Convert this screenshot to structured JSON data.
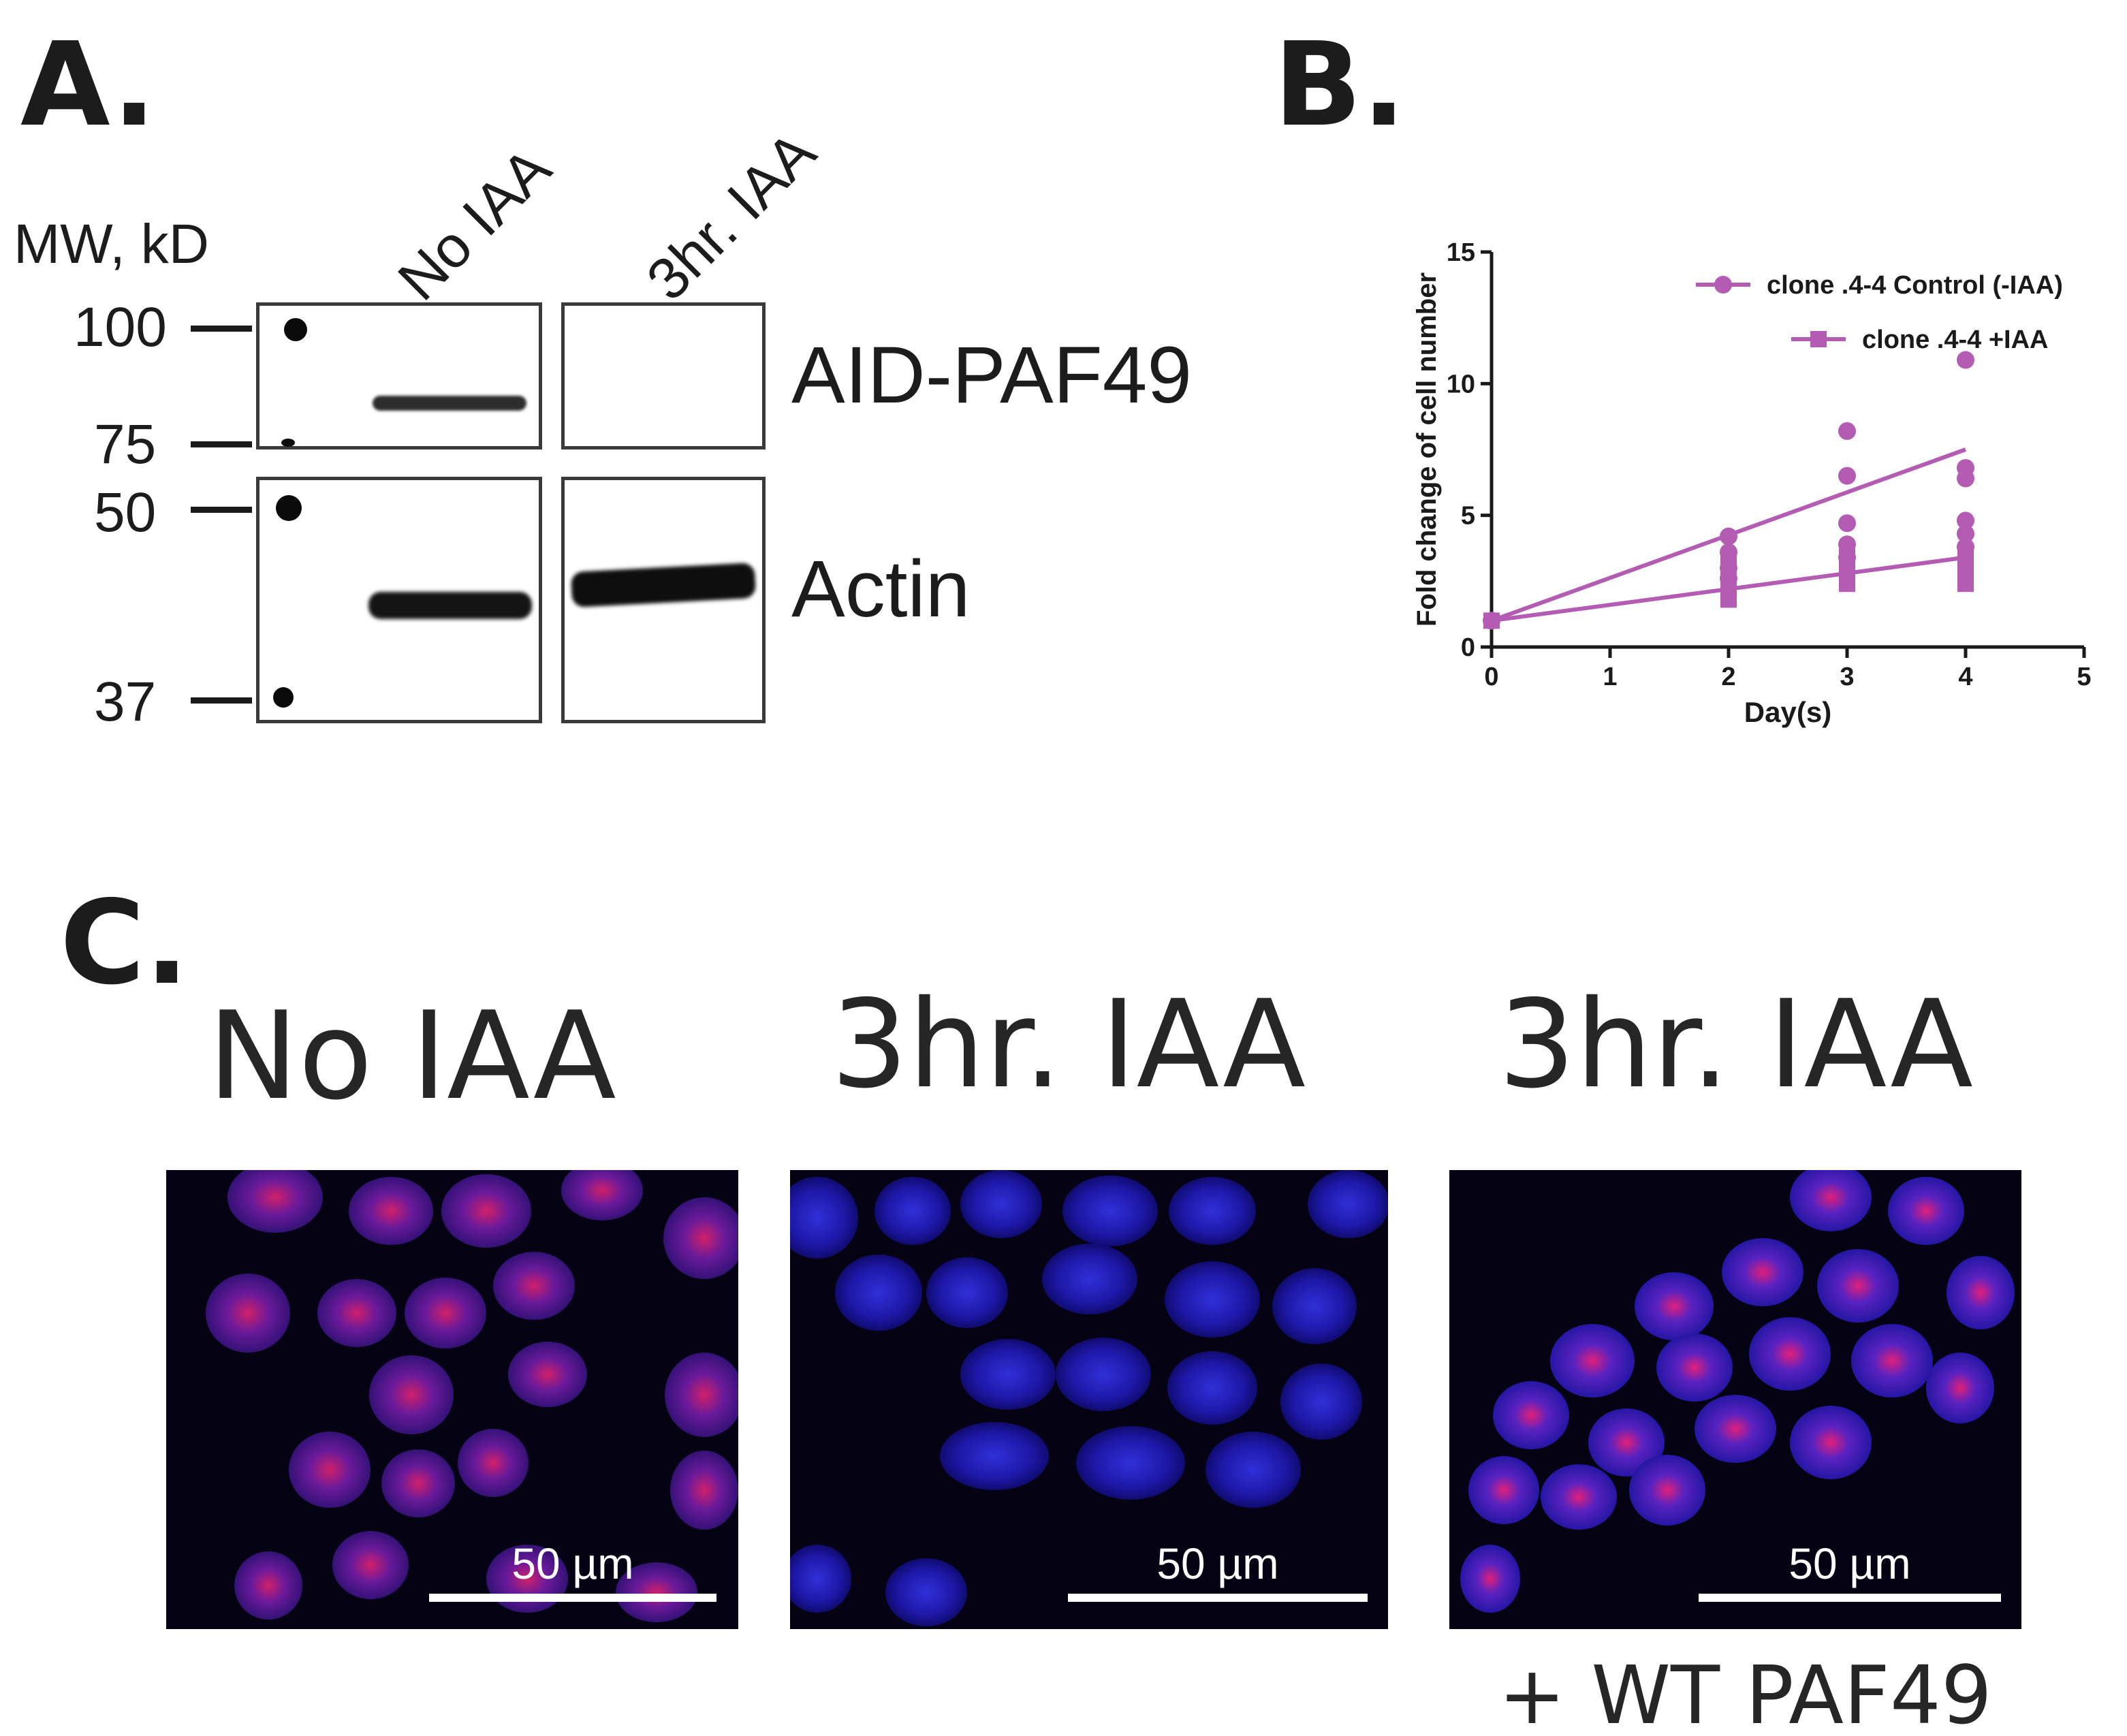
{
  "panel_a": {
    "letter": "A.",
    "mw_label": "MW, kD",
    "lanes": [
      "No IAA",
      "3hr. IAA"
    ],
    "markers": [
      "100",
      "75",
      "50",
      "37"
    ],
    "targets": [
      "AID-PAF49",
      "Actin"
    ]
  },
  "panel_b": {
    "letter": "B."
  },
  "panel_c": {
    "letter": "C.",
    "headers": [
      "No IAA",
      "3hr. IAA",
      "3hr. IAA"
    ],
    "subcaption": "+ WT PAF49",
    "scale_label": "50 µm"
  },
  "chart_data": {
    "type": "scatter",
    "title": "",
    "xlabel": "Day(s)",
    "ylabel": "Fold change of cell number",
    "xlim": [
      0,
      5
    ],
    "ylim": [
      0,
      15
    ],
    "xticks": [
      0,
      1,
      2,
      3,
      4,
      5
    ],
    "yticks": [
      0,
      5,
      10,
      15
    ],
    "grid": false,
    "legend_position": "top-right",
    "color": "#b45cb4",
    "series": [
      {
        "name": "clone .4-4 Control (-IAA)",
        "marker": "circle",
        "points": [
          [
            0,
            1
          ],
          [
            2,
            4.2
          ],
          [
            2,
            3.6
          ],
          [
            2,
            3.0
          ],
          [
            2,
            2.6
          ],
          [
            3,
            8.2
          ],
          [
            3,
            6.5
          ],
          [
            3,
            4.7
          ],
          [
            3,
            3.9
          ],
          [
            3,
            3.4
          ],
          [
            4,
            10.9
          ],
          [
            4,
            6.8
          ],
          [
            4,
            6.4
          ],
          [
            4,
            4.8
          ],
          [
            4,
            4.3
          ],
          [
            4,
            3.8
          ]
        ],
        "fit_line": [
          [
            0,
            1
          ],
          [
            4,
            7.5
          ]
        ]
      },
      {
        "name": "clone .4-4 +IAA",
        "marker": "square",
        "points": [
          [
            0,
            1
          ],
          [
            2,
            3.2
          ],
          [
            2,
            2.8
          ],
          [
            2,
            2.4
          ],
          [
            2,
            2.1
          ],
          [
            2,
            1.8
          ],
          [
            3,
            3.6
          ],
          [
            3,
            3.1
          ],
          [
            3,
            2.8
          ],
          [
            3,
            2.4
          ],
          [
            4,
            3.4
          ],
          [
            4,
            2.8
          ],
          [
            4,
            2.6
          ],
          [
            4,
            2.4
          ]
        ],
        "fit_line": [
          [
            0,
            1
          ],
          [
            4,
            3.4
          ]
        ]
      }
    ]
  }
}
